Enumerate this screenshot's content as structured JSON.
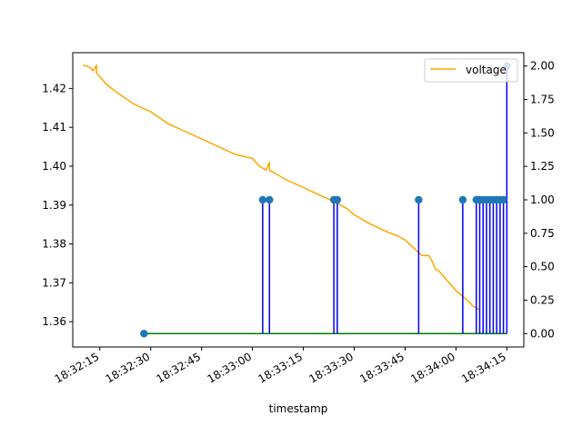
{
  "chart_data": {
    "type": "line",
    "xlabel": "timestamp",
    "legend": {
      "placement": "top-right",
      "entries": [
        "voltage"
      ]
    },
    "x_ticks": [
      "18:32:15",
      "18:32:30",
      "18:32:45",
      "18:33:00",
      "18:33:15",
      "18:33:30",
      "18:33:45",
      "18:34:00",
      "18:34:15"
    ],
    "x_range": [
      "18:32:07",
      "18:34:20"
    ],
    "left_axis": {
      "ylim": [
        1.3535,
        1.4292
      ],
      "ticks": [
        "1.36",
        "1.37",
        "1.38",
        "1.39",
        "1.40",
        "1.41",
        "1.42"
      ],
      "tick_values": [
        1.36,
        1.37,
        1.38,
        1.39,
        1.4,
        1.41,
        1.42
      ]
    },
    "right_axis": {
      "ylim": [
        -0.1,
        2.1
      ],
      "ticks": [
        "0.00",
        "0.25",
        "0.50",
        "0.75",
        "1.00",
        "1.25",
        "1.50",
        "1.75",
        "2.00"
      ],
      "tick_values": [
        0,
        0.25,
        0.5,
        0.75,
        1.0,
        1.25,
        1.5,
        1.75,
        2.0
      ]
    },
    "series": [
      {
        "name": "voltage",
        "axis": "left",
        "color": "#ffa500",
        "style": "line",
        "x": [
          "18:32:10",
          "18:32:12",
          "18:32:13",
          "18:32:14",
          "18:32:14",
          "18:32:15",
          "18:32:17",
          "18:32:20",
          "18:32:25",
          "18:32:30",
          "18:32:35",
          "18:32:40",
          "18:32:45",
          "18:32:50",
          "18:32:55",
          "18:33:00",
          "18:33:02",
          "18:33:04",
          "18:33:05",
          "18:33:05",
          "18:33:06",
          "18:33:10",
          "18:33:15",
          "18:33:20",
          "18:33:25",
          "18:33:28",
          "18:33:30",
          "18:33:35",
          "18:33:40",
          "18:33:43",
          "18:33:45",
          "18:33:50",
          "18:33:52",
          "18:33:53",
          "18:33:54",
          "18:33:55",
          "18:33:58",
          "18:34:00",
          "18:34:02",
          "18:34:04",
          "18:34:05",
          "18:34:07"
        ],
        "y": [
          1.426,
          1.4255,
          1.4245,
          1.426,
          1.424,
          1.423,
          1.421,
          1.419,
          1.416,
          1.414,
          1.411,
          1.409,
          1.407,
          1.405,
          1.403,
          1.402,
          1.4,
          1.399,
          1.401,
          1.399,
          1.3985,
          1.3965,
          1.3945,
          1.3925,
          1.3905,
          1.389,
          1.3875,
          1.385,
          1.383,
          1.382,
          1.381,
          1.377,
          1.377,
          1.3755,
          1.3735,
          1.373,
          1.37,
          1.368,
          1.3665,
          1.365,
          1.364,
          1.363
        ]
      },
      {
        "name": "",
        "axis": "right",
        "color": "#0000ff",
        "style": "stem",
        "marker_color": "#1f77b4",
        "baseline_color": "#008000",
        "baseline": 0,
        "x": [
          "18:32:28",
          "18:33:03",
          "18:33:05",
          "18:33:24",
          "18:33:25",
          "18:33:49",
          "18:34:02",
          "18:34:06",
          "18:34:07",
          "18:34:08",
          "18:34:09",
          "18:34:10",
          "18:34:11",
          "18:34:12",
          "18:34:13",
          "18:34:14",
          "18:34:15"
        ],
        "values": [
          0,
          1,
          1,
          1,
          1,
          1,
          1,
          1,
          1,
          1,
          1,
          1,
          1,
          1,
          1,
          1,
          2
        ]
      }
    ]
  }
}
